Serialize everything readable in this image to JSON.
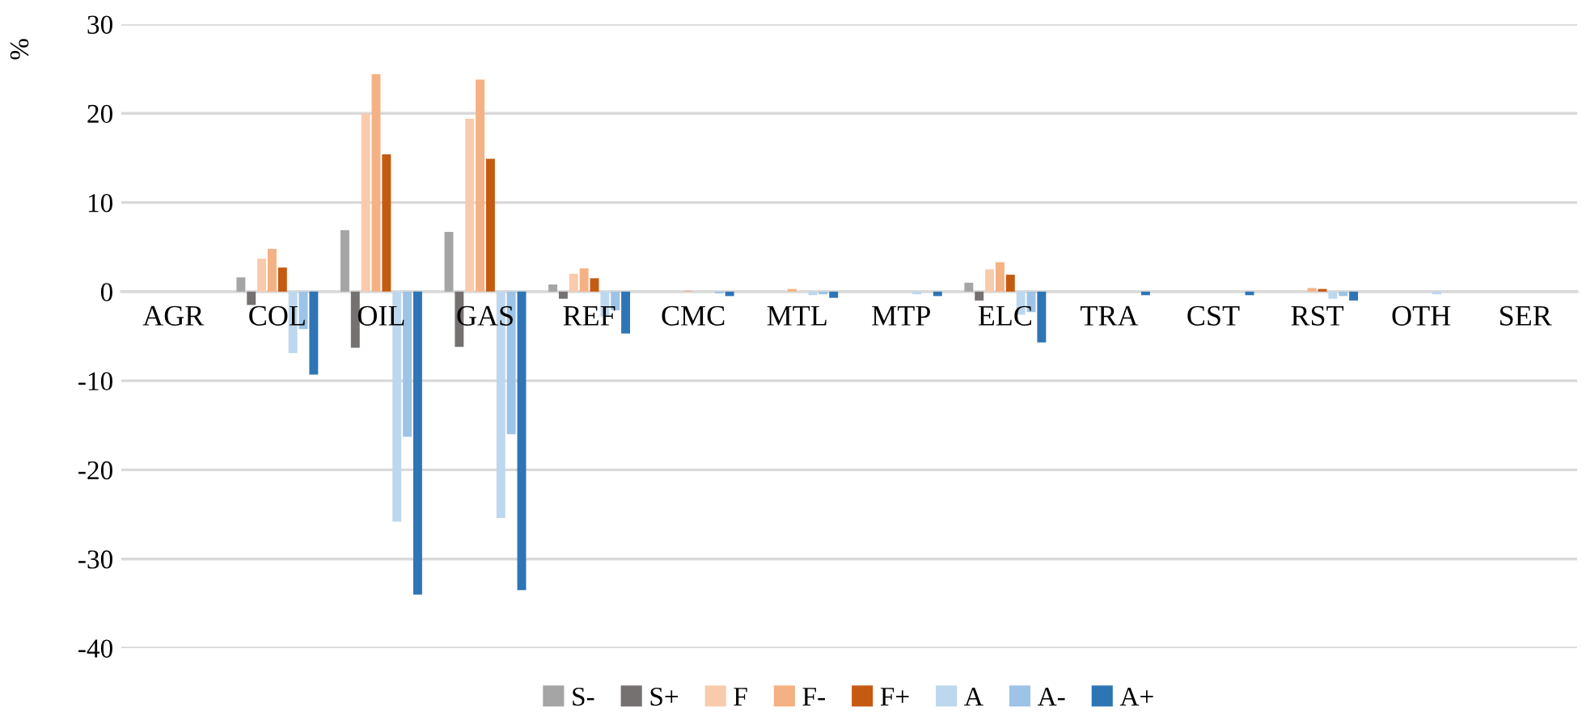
{
  "chart_data": {
    "type": "bar",
    "ylabel": "%",
    "categories": [
      "AGR",
      "COL",
      "OIL",
      "GAS",
      "REF",
      "CMC",
      "MTL",
      "MTP",
      "ELC",
      "TRA",
      "CST",
      "RST",
      "OTH",
      "SER"
    ],
    "series": [
      {
        "name": "S-",
        "color": "#a5a5a5",
        "values": [
          0,
          1.6,
          6.9,
          6.7,
          0.8,
          0,
          0,
          0,
          1.0,
          0,
          0,
          0,
          0,
          0
        ]
      },
      {
        "name": "S+",
        "color": "#767171",
        "values": [
          0,
          -1.5,
          -6.3,
          -6.2,
          -0.8,
          0,
          0,
          0,
          -1.0,
          0,
          0,
          0,
          0,
          0
        ]
      },
      {
        "name": "F",
        "color": "#f8cbad",
        "values": [
          0,
          3.7,
          20.0,
          19.4,
          2.0,
          null,
          null,
          0,
          2.5,
          0,
          0,
          null,
          0,
          0
        ]
      },
      {
        "name": "F-",
        "color": "#f4b183",
        "values": [
          0,
          4.8,
          24.4,
          23.8,
          2.6,
          0.1,
          0.3,
          0,
          3.3,
          0,
          0,
          0.4,
          0,
          0
        ]
      },
      {
        "name": "F+",
        "color": "#c55a11",
        "values": [
          0,
          2.7,
          15.4,
          14.9,
          1.5,
          0,
          0,
          0,
          1.9,
          0,
          0,
          0.3,
          0,
          0
        ]
      },
      {
        "name": "A",
        "color": "#bdd7ee",
        "values": [
          0,
          -6.9,
          -25.8,
          -25.4,
          -2.8,
          null,
          -0.4,
          -0.3,
          -2.6,
          null,
          0,
          -0.8,
          -0.3,
          0
        ]
      },
      {
        "name": "A-",
        "color": "#9dc3e6",
        "values": [
          0,
          -4.2,
          -16.3,
          -16.0,
          -2.1,
          -0.2,
          -0.3,
          0,
          -2.3,
          0,
          0,
          -0.5,
          0,
          0
        ]
      },
      {
        "name": "A+",
        "color": "#2e75b6",
        "values": [
          0,
          -9.3,
          -34.0,
          -33.5,
          -4.7,
          -0.5,
          -0.7,
          -0.5,
          -5.7,
          -0.4,
          -0.4,
          -1.0,
          0,
          0
        ]
      }
    ],
    "ylim": [
      -40,
      30
    ],
    "yticks": [
      -40,
      -30,
      -20,
      -10,
      0,
      10,
      20,
      30
    ],
    "grid": "y",
    "legend": "bottom"
  }
}
